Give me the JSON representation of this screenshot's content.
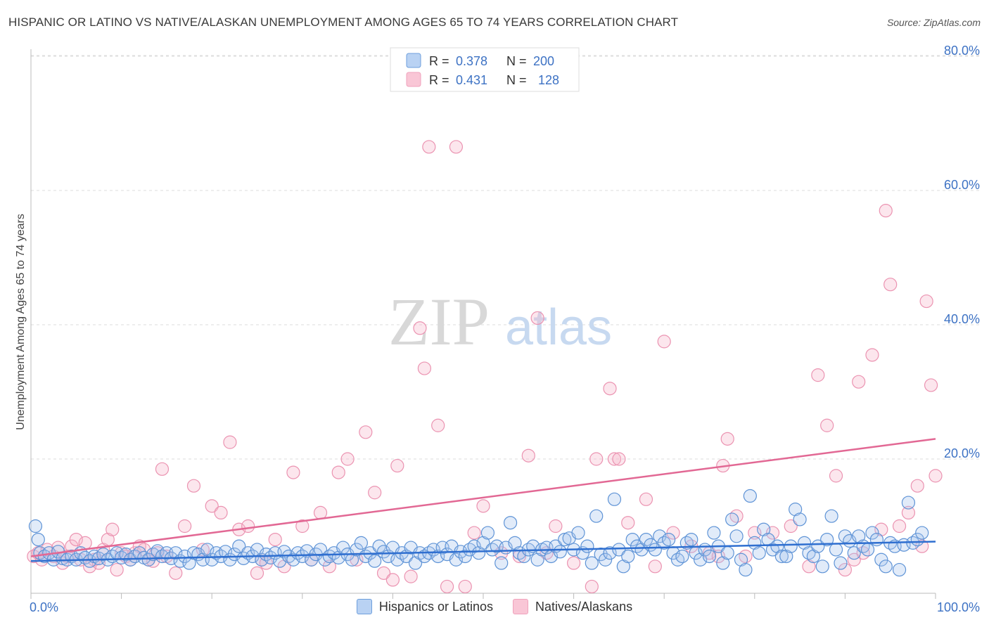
{
  "title": "HISPANIC OR LATINO VS NATIVE/ALASKAN UNEMPLOYMENT AMONG AGES 65 TO 74 YEARS CORRELATION CHART",
  "source": "Source: ZipAtlas.com",
  "watermark": {
    "zip": "ZIP",
    "atlas": "atlas"
  },
  "chart_data": {
    "type": "scatter",
    "ylabel": "Unemployment Among Ages 65 to 74 years",
    "xlim": [
      0,
      100
    ],
    "ylim": [
      0,
      85
    ],
    "x_tick_labels": [
      "0.0%",
      "100.0%"
    ],
    "y_ticks": [
      20,
      40,
      60,
      80
    ],
    "y_tick_labels": [
      "20.0%",
      "40.0%",
      "60.0%",
      "80.0%"
    ],
    "grid": "horizontal dashed",
    "legend_placement": "top-center",
    "series": [
      {
        "name": "Hispanics or Latinos",
        "color": "#6e9fdc",
        "line_color": "#2f6fd0",
        "R": "0.378",
        "N": "200",
        "trend": [
          [
            0,
            4.8
          ],
          [
            100,
            7.7
          ]
        ],
        "points": [
          [
            0.5,
            10
          ],
          [
            0.8,
            8
          ],
          [
            1,
            6
          ],
          [
            1.5,
            5.5
          ],
          [
            2,
            6
          ],
          [
            2.5,
            5
          ],
          [
            3,
            6.2
          ],
          [
            3.5,
            5.2
          ],
          [
            4,
            5
          ],
          [
            4.5,
            5.5
          ],
          [
            5,
            5
          ],
          [
            5.5,
            6
          ],
          [
            6,
            5.3
          ],
          [
            6.5,
            4.8
          ],
          [
            7,
            5.5
          ],
          [
            7.5,
            5.2
          ],
          [
            8,
            5.8
          ],
          [
            8.5,
            5
          ],
          [
            9,
            5.5
          ],
          [
            9.5,
            6
          ],
          [
            10,
            5.3
          ],
          [
            10.5,
            5.8
          ],
          [
            11,
            5
          ],
          [
            11.5,
            5.5
          ],
          [
            12,
            6
          ],
          [
            12.5,
            5.3
          ],
          [
            13,
            5
          ],
          [
            13.5,
            5.8
          ],
          [
            14,
            6.3
          ],
          [
            14.5,
            5.5
          ],
          [
            15,
            6
          ],
          [
            15.5,
            5.2
          ],
          [
            16,
            6
          ],
          [
            16.5,
            4.8
          ],
          [
            17,
            5.5
          ],
          [
            17.5,
            4.5
          ],
          [
            18,
            6
          ],
          [
            18.5,
            5.8
          ],
          [
            19,
            5
          ],
          [
            19.5,
            6.5
          ],
          [
            20,
            5
          ],
          [
            20.5,
            6
          ],
          [
            21,
            5.5
          ],
          [
            21.5,
            6.2
          ],
          [
            22,
            5
          ],
          [
            22.5,
            5.8
          ],
          [
            23,
            7
          ],
          [
            23.5,
            5.2
          ],
          [
            24,
            6
          ],
          [
            24.5,
            5.5
          ],
          [
            25,
            6.5
          ],
          [
            25.5,
            5
          ],
          [
            26,
            5.8
          ],
          [
            26.5,
            5.3
          ],
          [
            27,
            6
          ],
          [
            27.5,
            4.8
          ],
          [
            28,
            6.2
          ],
          [
            28.5,
            5.5
          ],
          [
            29,
            5
          ],
          [
            29.5,
            6
          ],
          [
            30,
            5.5
          ],
          [
            30.5,
            6.3
          ],
          [
            31,
            5
          ],
          [
            31.5,
            5.8
          ],
          [
            32,
            6.5
          ],
          [
            32.5,
            5
          ],
          [
            33,
            5.5
          ],
          [
            33.5,
            6
          ],
          [
            34,
            5.3
          ],
          [
            34.5,
            6.8
          ],
          [
            35,
            5.8
          ],
          [
            35.5,
            5
          ],
          [
            36,
            6.5
          ],
          [
            36.5,
            7.5
          ],
          [
            37,
            5.5
          ],
          [
            37.5,
            6
          ],
          [
            38,
            4.8
          ],
          [
            38.5,
            7
          ],
          [
            39,
            6.2
          ],
          [
            39.5,
            5.5
          ],
          [
            40,
            6.8
          ],
          [
            40.5,
            5
          ],
          [
            41,
            6
          ],
          [
            41.5,
            5.5
          ],
          [
            42,
            6.8
          ],
          [
            42.5,
            4.5
          ],
          [
            43,
            6
          ],
          [
            43.5,
            5.5
          ],
          [
            44,
            6
          ],
          [
            44.5,
            6.5
          ],
          [
            45,
            5.5
          ],
          [
            45.5,
            6.8
          ],
          [
            46,
            5.8
          ],
          [
            46.5,
            7
          ],
          [
            47,
            5
          ],
          [
            47.5,
            6.2
          ],
          [
            48,
            5.5
          ],
          [
            48.5,
            6.5
          ],
          [
            49,
            7
          ],
          [
            49.5,
            6
          ],
          [
            50,
            7.5
          ],
          [
            50.5,
            9
          ],
          [
            51,
            6.5
          ],
          [
            51.5,
            7
          ],
          [
            52,
            4.5
          ],
          [
            52.5,
            6.8
          ],
          [
            53,
            10.5
          ],
          [
            53.5,
            7.5
          ],
          [
            54,
            6
          ],
          [
            54.5,
            5.5
          ],
          [
            55,
            6.5
          ],
          [
            55.5,
            7
          ],
          [
            56,
            5
          ],
          [
            56.5,
            6.5
          ],
          [
            57,
            6.8
          ],
          [
            57.5,
            5.5
          ],
          [
            58,
            7
          ],
          [
            58.5,
            6.2
          ],
          [
            59,
            8
          ],
          [
            59.5,
            8.2
          ],
          [
            60,
            6.5
          ],
          [
            60.5,
            9
          ],
          [
            61,
            6
          ],
          [
            61.5,
            7
          ],
          [
            62,
            4.5
          ],
          [
            62.5,
            11.5
          ],
          [
            63,
            5.8
          ],
          [
            63.5,
            5
          ],
          [
            64,
            6
          ],
          [
            64.5,
            14
          ],
          [
            65,
            6.5
          ],
          [
            65.5,
            4
          ],
          [
            66,
            5.5
          ],
          [
            66.5,
            8
          ],
          [
            67,
            7
          ],
          [
            67.5,
            6.5
          ],
          [
            68,
            8
          ],
          [
            68.5,
            7.2
          ],
          [
            69,
            6.5
          ],
          [
            69.5,
            8.5
          ],
          [
            70,
            7.5
          ],
          [
            70.5,
            8
          ],
          [
            71,
            6
          ],
          [
            71.5,
            5
          ],
          [
            72,
            5.5
          ],
          [
            72.5,
            7.5
          ],
          [
            73,
            8
          ],
          [
            73.5,
            6
          ],
          [
            74,
            5
          ],
          [
            74.5,
            6.5
          ],
          [
            75,
            5.5
          ],
          [
            75.5,
            9
          ],
          [
            76,
            7
          ],
          [
            76.5,
            4.5
          ],
          [
            77,
            6
          ],
          [
            77.5,
            11
          ],
          [
            78,
            8.5
          ],
          [
            78.5,
            5
          ],
          [
            79,
            3.5
          ],
          [
            79.5,
            14.5
          ],
          [
            80,
            7.5
          ],
          [
            80.5,
            6
          ],
          [
            81,
            9.5
          ],
          [
            81.5,
            8
          ],
          [
            82,
            6.5
          ],
          [
            82.5,
            7
          ],
          [
            83,
            5.5
          ],
          [
            83.5,
            5.5
          ],
          [
            84,
            7
          ],
          [
            84.5,
            12.5
          ],
          [
            85,
            11
          ],
          [
            85.5,
            7.5
          ],
          [
            86,
            6
          ],
          [
            86.5,
            5.5
          ],
          [
            87,
            7
          ],
          [
            87.5,
            4
          ],
          [
            88,
            8
          ],
          [
            88.5,
            11.5
          ],
          [
            89,
            6.5
          ],
          [
            89.5,
            4.5
          ],
          [
            90,
            8.5
          ],
          [
            90.5,
            7.8
          ],
          [
            91,
            6
          ],
          [
            91.5,
            8.5
          ],
          [
            92,
            7
          ],
          [
            92.5,
            6.5
          ],
          [
            93,
            9
          ],
          [
            93.5,
            8
          ],
          [
            94,
            5
          ],
          [
            94.5,
            4
          ],
          [
            95,
            7.5
          ],
          [
            95.5,
            7
          ],
          [
            96,
            3.5
          ],
          [
            96.5,
            7.2
          ],
          [
            97,
            13.5
          ],
          [
            97.5,
            7.5
          ],
          [
            98,
            8
          ],
          [
            98.5,
            9
          ]
        ]
      },
      {
        "name": "Natives/Alaskans",
        "color": "#f0a2bc",
        "line_color": "#e26894",
        "R": "0.431",
        "N": "128",
        "trend": [
          [
            0,
            5.5
          ],
          [
            100,
            23
          ]
        ],
        "points": [
          [
            0.3,
            5.5
          ],
          [
            0.8,
            6
          ],
          [
            1.2,
            5
          ],
          [
            1.8,
            6.5
          ],
          [
            2.5,
            5.5
          ],
          [
            3,
            6.8
          ],
          [
            3.5,
            4.5
          ],
          [
            4,
            5.5
          ],
          [
            4.5,
            7
          ],
          [
            5,
            8
          ],
          [
            5.5,
            5
          ],
          [
            6,
            7.5
          ],
          [
            6.5,
            4
          ],
          [
            7,
            5
          ],
          [
            7.5,
            4.5
          ],
          [
            8,
            6.5
          ],
          [
            8.5,
            8
          ],
          [
            9,
            9.5
          ],
          [
            9.5,
            3.5
          ],
          [
            10,
            6
          ],
          [
            10.5,
            5.5
          ],
          [
            11,
            5
          ],
          [
            11.5,
            6
          ],
          [
            12,
            7
          ],
          [
            12.5,
            6.5
          ],
          [
            13,
            5
          ],
          [
            13.5,
            4.8
          ],
          [
            14,
            6
          ],
          [
            14.5,
            18.5
          ],
          [
            15,
            5.5
          ],
          [
            16,
            3
          ],
          [
            17,
            10
          ],
          [
            18,
            16
          ],
          [
            19,
            6.5
          ],
          [
            20,
            13
          ],
          [
            21,
            12
          ],
          [
            22,
            22.5
          ],
          [
            23,
            9.5
          ],
          [
            24,
            10
          ],
          [
            25,
            3
          ],
          [
            25.5,
            5
          ],
          [
            26,
            4.5
          ],
          [
            27,
            8
          ],
          [
            28,
            4
          ],
          [
            29,
            18
          ],
          [
            30,
            10
          ],
          [
            31,
            5
          ],
          [
            32,
            12
          ],
          [
            33,
            4
          ],
          [
            34,
            18
          ],
          [
            35,
            20
          ],
          [
            36,
            5
          ],
          [
            37,
            24
          ],
          [
            38,
            15
          ],
          [
            39,
            3
          ],
          [
            40,
            2
          ],
          [
            40.5,
            19
          ],
          [
            42,
            2.5
          ],
          [
            43,
            39.5
          ],
          [
            43.5,
            33.5
          ],
          [
            44,
            66.5
          ],
          [
            45,
            25
          ],
          [
            46,
            1
          ],
          [
            47,
            66.5
          ],
          [
            48,
            1
          ],
          [
            49,
            9
          ],
          [
            50,
            13
          ],
          [
            52,
            6
          ],
          [
            54,
            5.5
          ],
          [
            55,
            20.5
          ],
          [
            56,
            41
          ],
          [
            57,
            6
          ],
          [
            58,
            10
          ],
          [
            60,
            4.5
          ],
          [
            62,
            1
          ],
          [
            62.5,
            20
          ],
          [
            64,
            30.5
          ],
          [
            64.5,
            20
          ],
          [
            65,
            20
          ],
          [
            66,
            10.5
          ],
          [
            68,
            14
          ],
          [
            69,
            4
          ],
          [
            70,
            37.5
          ],
          [
            71,
            9
          ],
          [
            73,
            7
          ],
          [
            75,
            6
          ],
          [
            76,
            5.5
          ],
          [
            76.5,
            19
          ],
          [
            77,
            23
          ],
          [
            78,
            11.5
          ],
          [
            79,
            5.5
          ],
          [
            80,
            9
          ],
          [
            82,
            9
          ],
          [
            84,
            10
          ],
          [
            86,
            4
          ],
          [
            87,
            32.5
          ],
          [
            88,
            25
          ],
          [
            89,
            17.5
          ],
          [
            90,
            3.5
          ],
          [
            91,
            5
          ],
          [
            91.5,
            31.5
          ],
          [
            92,
            6
          ],
          [
            93,
            35.5
          ],
          [
            94,
            9.5
          ],
          [
            94.5,
            57
          ],
          [
            95,
            46
          ],
          [
            96,
            10
          ],
          [
            97,
            12
          ],
          [
            98,
            16
          ],
          [
            99,
            43.5
          ],
          [
            99.5,
            31
          ],
          [
            100,
            17.5
          ],
          [
            98.5,
            7
          ]
        ]
      }
    ]
  },
  "legend_bottom": [
    "Hispanics or Latinos",
    "Natives/Alaskans"
  ],
  "legend_top": {
    "r_label": "R = ",
    "n_label": "N = "
  }
}
